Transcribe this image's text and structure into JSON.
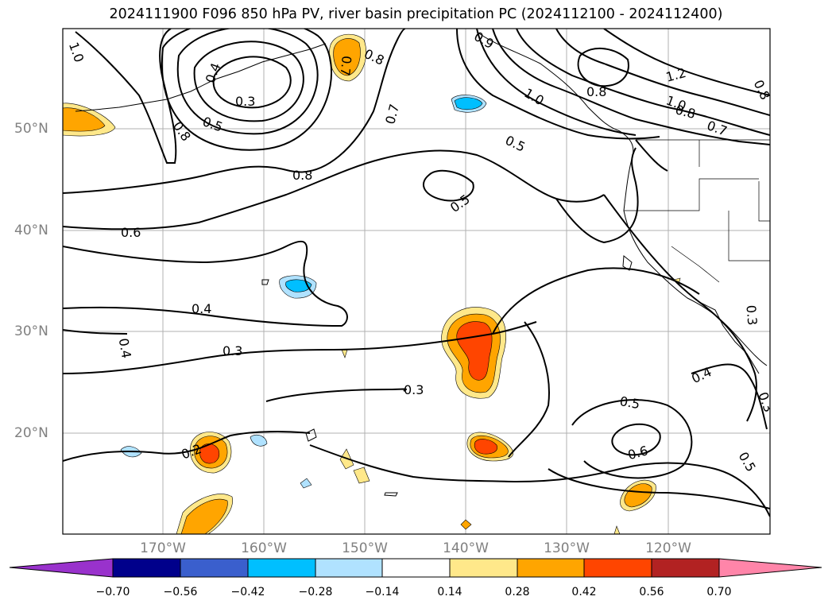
{
  "title": "2024111900 F096 850 hPa PV, river basin precipitation PC (2024112100 - 2024112400)",
  "lat_labels": [
    "50°N",
    "40°N",
    "30°N",
    "20°N"
  ],
  "lon_labels": [
    "170°W",
    "160°W",
    "150°W",
    "140°W",
    "130°W",
    "120°W"
  ],
  "colorbar": {
    "ticks": [
      "−0.70",
      "−0.56",
      "−0.42",
      "−0.28",
      "−0.14",
      "0.14",
      "0.28",
      "0.42",
      "0.56",
      "0.70"
    ],
    "colors": [
      "#9932cc",
      "#00008b",
      "#3a5fcd",
      "#00bfff",
      "#b0e2ff",
      "#ffffff",
      "#ffe88a",
      "#ffa500",
      "#ff4500",
      "#b22222",
      "#ff85a9"
    ]
  },
  "contour_labels": [
    "1.0",
    "0.4",
    "0.3",
    "0.5",
    "0.8",
    "0.7",
    "0.8",
    "0.9",
    "0.7",
    "1.0",
    "0.8",
    "1.2",
    "1.0",
    "0.8",
    "0.7",
    "0.8",
    "0.5",
    "0.5",
    "0.8",
    "0.6",
    "0.4",
    "0.4",
    "0.3",
    "0.3",
    "0.2",
    "0.3",
    "0.4",
    "0.3",
    "0.5",
    "0.6",
    "0.5"
  ]
}
